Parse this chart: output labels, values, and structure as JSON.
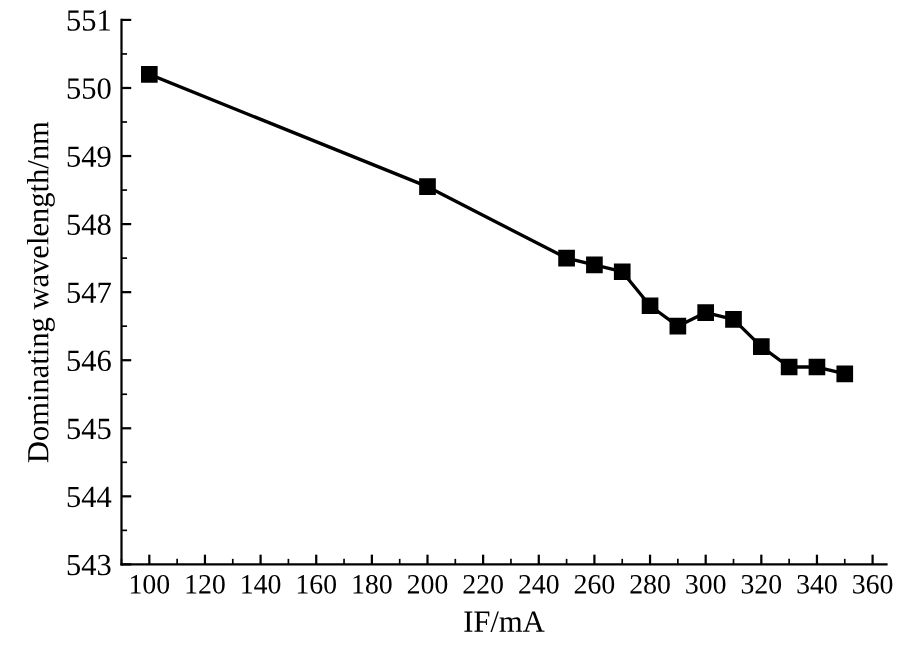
{
  "chart_data": {
    "type": "line",
    "xlabel": "IF/mA",
    "ylabel": "Dominating wavelength/nm",
    "x": [
      100,
      200,
      250,
      260,
      270,
      280,
      290,
      300,
      310,
      320,
      330,
      340,
      350
    ],
    "series": [
      {
        "color": "#000000",
        "values": [
          550.2,
          548.55,
          547.5,
          547.4,
          547.3,
          546.8,
          546.5,
          546.7,
          546.6,
          546.2,
          545.9,
          545.9,
          545.8
        ]
      }
    ],
    "xlim": [
      90,
      365
    ],
    "xticks": [
      100,
      120,
      140,
      160,
      180,
      200,
      220,
      240,
      260,
      280,
      300,
      320,
      340,
      360
    ],
    "ylim": [
      543,
      551
    ],
    "yticks": [
      543,
      544,
      545,
      546,
      547,
      548,
      549,
      550,
      551
    ],
    "marker": "square",
    "line_style": "solid",
    "grid": false,
    "legend": false
  }
}
